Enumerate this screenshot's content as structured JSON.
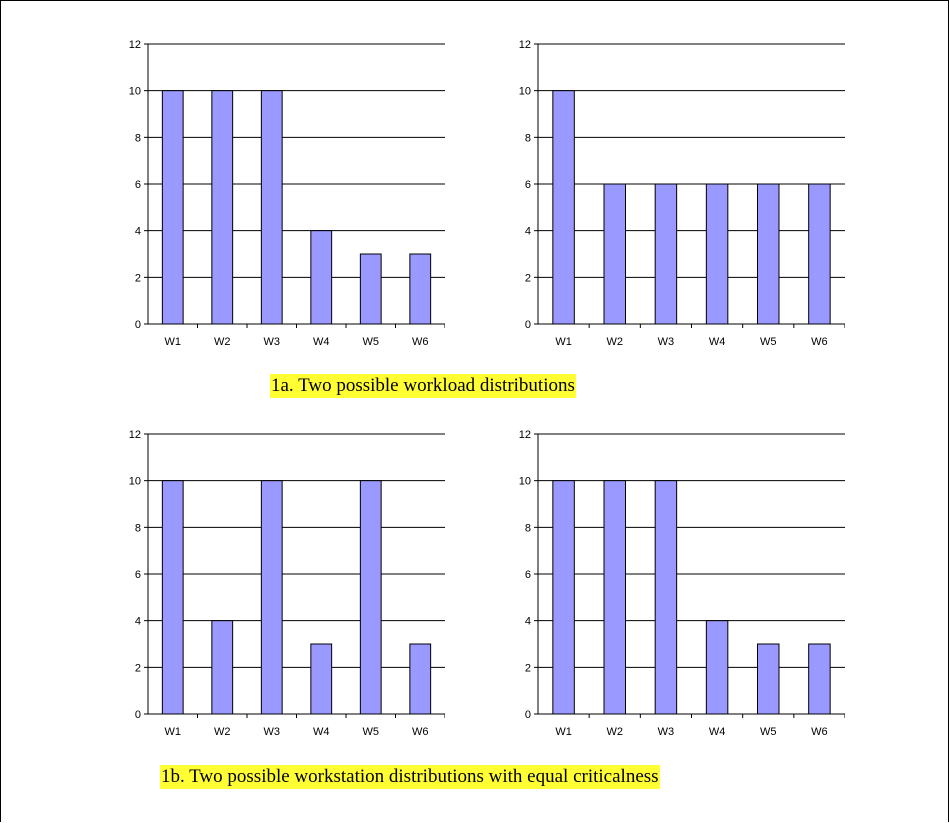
{
  "style": {
    "bar_fill": "#9999ff",
    "bar_stroke": "#000000",
    "caption_bg": "#ffff33"
  },
  "captions": {
    "caption_1a": "1a. Two possible workload distributions",
    "caption_1b": "1b. Two possible workstation distributions with equal criticalness"
  },
  "chart_data": [
    {
      "type": "bar",
      "categories": [
        "W1",
        "W2",
        "W3",
        "W4",
        "W5",
        "W6"
      ],
      "values": [
        10,
        10,
        10,
        4,
        3,
        3
      ],
      "ylim": [
        0,
        12
      ],
      "yticks": [
        0,
        2,
        4,
        6,
        8,
        10,
        12
      ],
      "grid": true,
      "legend": "none"
    },
    {
      "type": "bar",
      "categories": [
        "W1",
        "W2",
        "W3",
        "W4",
        "W5",
        "W6"
      ],
      "values": [
        10,
        6,
        6,
        6,
        6,
        6
      ],
      "ylim": [
        0,
        12
      ],
      "yticks": [
        0,
        2,
        4,
        6,
        8,
        10,
        12
      ],
      "grid": true,
      "legend": "none"
    },
    {
      "type": "bar",
      "categories": [
        "W1",
        "W2",
        "W3",
        "W4",
        "W5",
        "W6"
      ],
      "values": [
        10,
        4,
        10,
        3,
        10,
        3
      ],
      "ylim": [
        0,
        12
      ],
      "yticks": [
        0,
        2,
        4,
        6,
        8,
        10,
        12
      ],
      "grid": true,
      "legend": "none"
    },
    {
      "type": "bar",
      "categories": [
        "W1",
        "W2",
        "W3",
        "W4",
        "W5",
        "W6"
      ],
      "values": [
        10,
        10,
        10,
        4,
        3,
        3
      ],
      "ylim": [
        0,
        12
      ],
      "yticks": [
        0,
        2,
        4,
        6,
        8,
        10,
        12
      ],
      "grid": true,
      "legend": "none"
    }
  ]
}
